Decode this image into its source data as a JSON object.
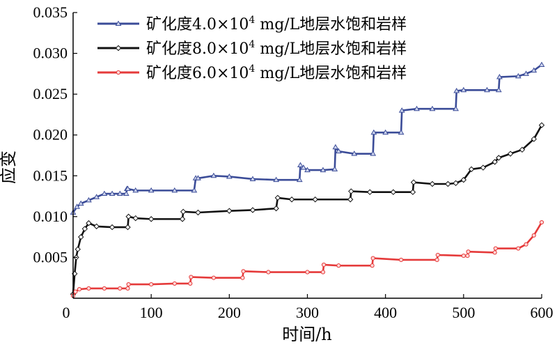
{
  "chart_data": {
    "type": "line",
    "title": "",
    "xlabel": "时间/h",
    "ylabel": "应变",
    "xlim": [
      0,
      600
    ],
    "ylim": [
      0,
      0.035
    ],
    "xticks": [
      0,
      100,
      200,
      300,
      400,
      500,
      600
    ],
    "yticks": [
      0,
      0.005,
      0.01,
      0.015,
      0.02,
      0.025,
      0.03,
      0.035
    ],
    "xtick_labels": [
      "0",
      "100",
      "200",
      "300",
      "400",
      "500",
      "600"
    ],
    "ytick_labels": [
      "0",
      "0.005",
      "0.010",
      "0.015",
      "0.020",
      "0.025",
      "0.030",
      "0.035"
    ],
    "grid": false,
    "legend_position": "top-left",
    "series": [
      {
        "name": "矿化度4.0×10⁴ mg/L地层水饱和岩样",
        "legend_label": {
          "prefix": "矿化度4.0×10",
          "sup": "4",
          "suffix": " mg/L地层水饱和岩样"
        },
        "color": "#3b4c98",
        "marker": "triangle",
        "x": [
          0,
          5,
          10,
          20,
          30,
          40,
          50,
          60,
          68,
          69,
          70,
          80,
          100,
          130,
          155,
          157,
          160,
          180,
          200,
          230,
          260,
          290,
          291,
          295,
          300,
          320,
          335,
          336,
          340,
          360,
          384,
          385,
          400,
          420,
          421,
          440,
          460,
          490,
          491,
          500,
          530,
          545,
          546,
          570,
          580,
          590,
          600
        ],
        "y": [
          0.0105,
          0.0112,
          0.0116,
          0.012,
          0.0124,
          0.0128,
          0.0128,
          0.0128,
          0.0128,
          0.0134,
          0.0134,
          0.0132,
          0.0132,
          0.0132,
          0.0132,
          0.0147,
          0.0147,
          0.015,
          0.0149,
          0.0146,
          0.0145,
          0.0145,
          0.0163,
          0.016,
          0.0157,
          0.0157,
          0.0158,
          0.0185,
          0.018,
          0.0177,
          0.0177,
          0.0203,
          0.0203,
          0.0203,
          0.023,
          0.0232,
          0.0232,
          0.0232,
          0.0254,
          0.0255,
          0.0255,
          0.0255,
          0.0271,
          0.0272,
          0.0275,
          0.0279,
          0.0286
        ]
      },
      {
        "name": "矿化度8.0×10⁴ mg/L地层水饱和岩样",
        "legend_label": {
          "prefix": "矿化度8.0×10",
          "sup": "4",
          "suffix": " mg/L地层水饱和岩样"
        },
        "color": "#111111",
        "marker": "diamond",
        "x": [
          0,
          2,
          4,
          6,
          10,
          15,
          20,
          30,
          50,
          70,
          71,
          80,
          100,
          140,
          141,
          160,
          200,
          230,
          260,
          262,
          280,
          310,
          355,
          356,
          380,
          410,
          435,
          436,
          460,
          480,
          490,
          500,
          510,
          525,
          540,
          545,
          560,
          575,
          590,
          600
        ],
        "y": [
          0.0005,
          0.003,
          0.005,
          0.006,
          0.0075,
          0.0085,
          0.0092,
          0.0088,
          0.0087,
          0.0087,
          0.01,
          0.0098,
          0.0097,
          0.0097,
          0.0106,
          0.0105,
          0.0107,
          0.0108,
          0.011,
          0.0123,
          0.0121,
          0.0121,
          0.0121,
          0.0131,
          0.013,
          0.013,
          0.013,
          0.0142,
          0.014,
          0.014,
          0.0141,
          0.0145,
          0.0158,
          0.016,
          0.0167,
          0.0172,
          0.0177,
          0.0182,
          0.0195,
          0.0212
        ]
      },
      {
        "name": "矿化度6.0×10⁴ mg/L地层水饱和岩样",
        "legend_label": {
          "prefix": "矿化度6.0×10",
          "sup": "4",
          "suffix": " mg/L地层水饱和岩样"
        },
        "color": "#e53a3a",
        "marker": "circle",
        "x": [
          0,
          3,
          8,
          20,
          40,
          60,
          70,
          71,
          100,
          130,
          150,
          151,
          180,
          217,
          218,
          250,
          300,
          320,
          321,
          340,
          383,
          384,
          420,
          466,
          467,
          500,
          505,
          506,
          540,
          541,
          570,
          580,
          590,
          600
        ],
        "y": [
          0.0003,
          0.0008,
          0.0011,
          0.0012,
          0.0012,
          0.0012,
          0.0012,
          0.0017,
          0.0017,
          0.0018,
          0.0018,
          0.0026,
          0.0025,
          0.0025,
          0.0033,
          0.0032,
          0.0032,
          0.0032,
          0.0041,
          0.004,
          0.004,
          0.0049,
          0.0047,
          0.0047,
          0.0053,
          0.0052,
          0.0052,
          0.0057,
          0.0056,
          0.0061,
          0.0061,
          0.0066,
          0.0077,
          0.0093
        ]
      }
    ]
  }
}
